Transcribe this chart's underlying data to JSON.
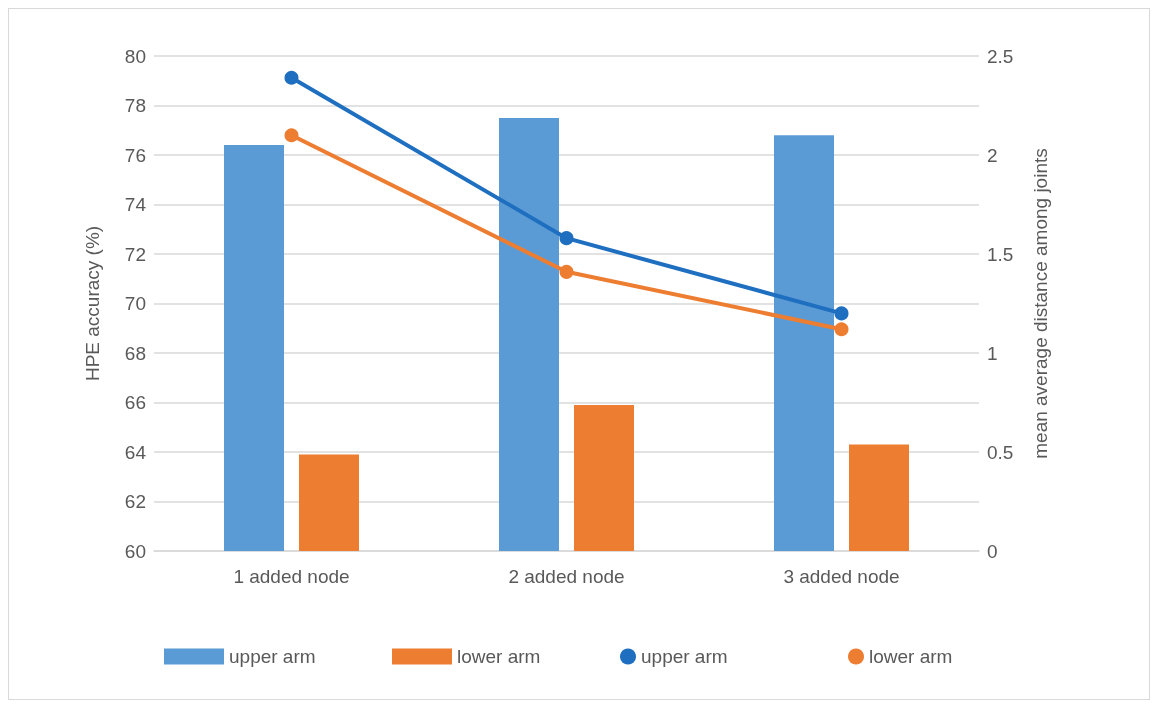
{
  "chart_data": {
    "type": "bar",
    "ylabel": "HPE accuracy (%)",
    "y2label": "mean average distance among joints",
    "categories": [
      "1 added node",
      "2 added node",
      "3 added node"
    ],
    "series": [
      {
        "name": "upper arm",
        "color": "#5b9bd5",
        "values": [
          76.4,
          77.5,
          76.8
        ]
      },
      {
        "name": "lower arm",
        "color": "#ed7d31",
        "values": [
          63.9,
          65.9,
          64.3
        ]
      },
      {
        "name": "upper arm",
        "type": "line",
        "axis": "y2",
        "color": "#1f6fc0",
        "values": [
          2.39,
          1.58,
          1.2
        ]
      },
      {
        "name": "lower arm",
        "type": "line",
        "axis": "y2",
        "color": "#ed7d31",
        "values": [
          2.1,
          1.41,
          1.12
        ]
      }
    ],
    "ylim": [
      60,
      80
    ],
    "yticks": [
      60,
      62,
      64,
      66,
      68,
      70,
      72,
      74,
      76,
      78,
      80
    ],
    "y2lim": [
      0,
      2.5
    ],
    "y2ticks": [
      0,
      0.5,
      1,
      1.5,
      2,
      2.5
    ],
    "grid": "y",
    "legend": "bottom",
    "marker": "circle",
    "line_style": "solid"
  }
}
